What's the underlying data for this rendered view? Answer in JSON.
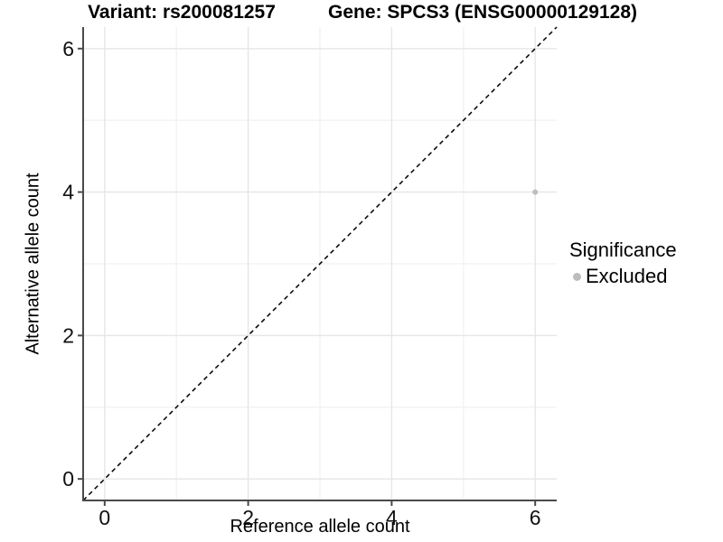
{
  "titles": {
    "left": "Variant: rs200081257",
    "right": "Gene: SPCS3 (ENSG00000129128)"
  },
  "chart_data": {
    "type": "scatter",
    "title_left": "Variant: rs200081257",
    "title_right": "Gene: SPCS3 (ENSG00000129128)",
    "xlabel": "Reference allele count",
    "ylabel": "Alternative allele count",
    "xlim": [
      -0.3,
      6.3
    ],
    "ylim": [
      -0.3,
      6.3
    ],
    "x_ticks": [
      0,
      2,
      4,
      6
    ],
    "y_ticks": [
      0,
      2,
      4,
      6
    ],
    "x_minor_gridlines": [
      1,
      3,
      5
    ],
    "y_minor_gridlines": [
      1,
      3,
      5
    ],
    "grid": true,
    "reference_line": {
      "type": "identity-diagonal",
      "style": "dashed",
      "from": [
        -0.3,
        -0.3
      ],
      "to": [
        6.3,
        6.3
      ]
    },
    "series": [
      {
        "name": "Excluded",
        "points": [
          {
            "x": 6,
            "y": 4
          }
        ]
      }
    ],
    "legend": {
      "title": "Significance",
      "position": "right",
      "items": [
        {
          "label": "Excluded",
          "color": "#bdbdbd"
        }
      ]
    },
    "colors": {
      "point": "#bdbdbd",
      "grid_major": "#e6e6e6",
      "grid_minor": "#f2f2f2",
      "axis_line": "#4a4a4a",
      "tick_label": "#111111",
      "dashed_line": "#000000",
      "background": "#ffffff"
    }
  }
}
